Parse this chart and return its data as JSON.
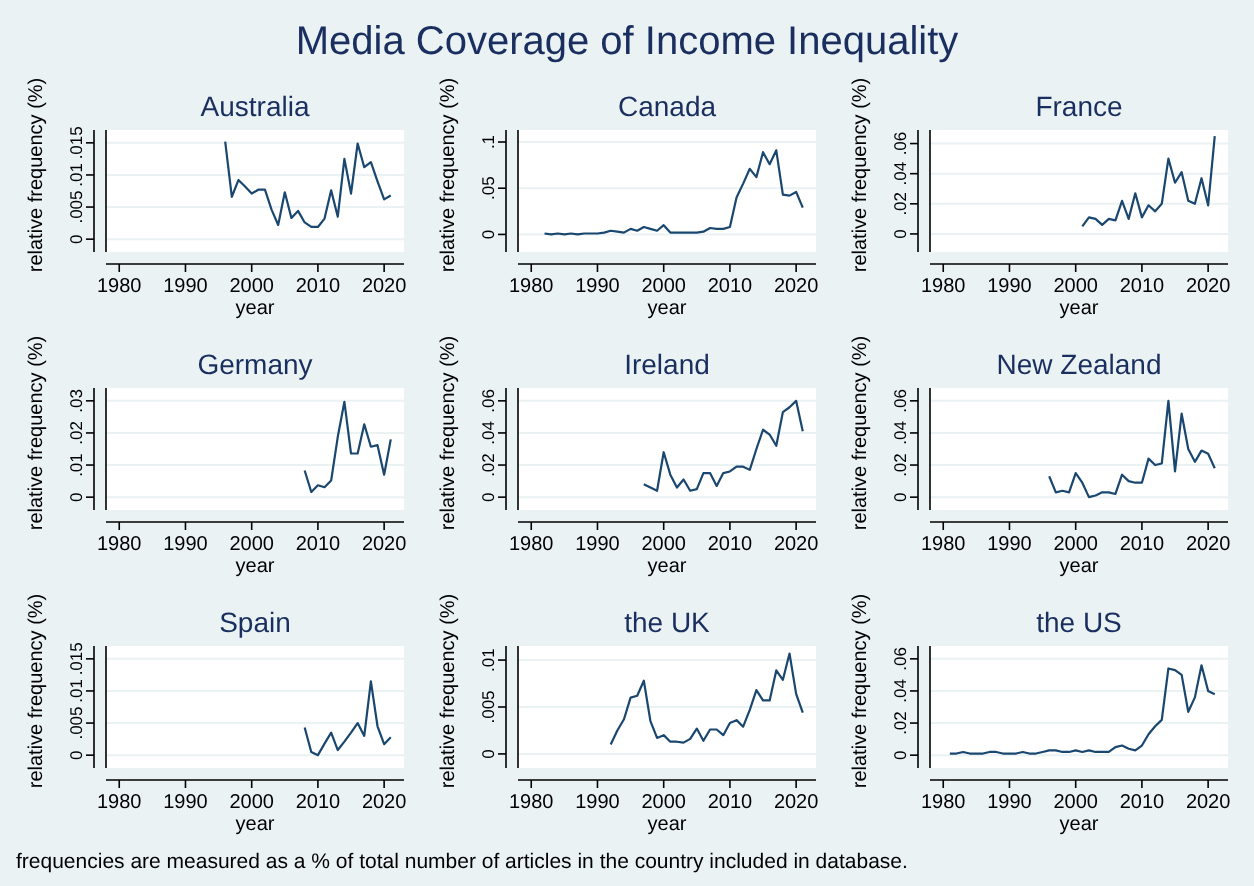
{
  "chart_data": [
    {
      "type": "other",
      "title": "Media Coverage of Income Inequality",
      "annotations": [
        "frequencies are measured as a % of total number of articles in the country included in database."
      ]
    },
    {
      "type": "line",
      "title": "Australia",
      "xlabel": "year",
      "ylabel": "relative frequency (%)",
      "grid": "y",
      "xlim": [
        1978,
        2023
      ],
      "xticks": [
        1980,
        1990,
        2000,
        2010,
        2020
      ],
      "ylim": [
        -0.002,
        0.017
      ],
      "yticks": [
        {
          "value": 0,
          "label": "0"
        },
        {
          "value": 0.005,
          "label": ".005"
        },
        {
          "value": 0.01,
          "label": ".01"
        },
        {
          "value": 0.015,
          "label": ".015"
        }
      ],
      "series": [
        {
          "color": "#1a476f",
          "x": [
            1996,
            1997,
            1998,
            1999,
            2000,
            2001,
            2002,
            2003,
            2004,
            2005,
            2006,
            2007,
            2008,
            2009,
            2010,
            2011,
            2012,
            2013,
            2014,
            2015,
            2016,
            2017,
            2018,
            2019,
            2020,
            2021
          ],
          "values": [
            0.0152,
            0.0066,
            0.0092,
            0.0082,
            0.0071,
            0.0077,
            0.0077,
            0.0046,
            0.0022,
            0.0073,
            0.0033,
            0.0044,
            0.0026,
            0.0019,
            0.0019,
            0.0032,
            0.0076,
            0.0035,
            0.0125,
            0.0071,
            0.0149,
            0.0112,
            0.012,
            0.009,
            0.0062,
            0.0068
          ]
        }
      ]
    },
    {
      "type": "line",
      "title": "Canada",
      "xlabel": "year",
      "ylabel": "relative frequency (%)",
      "grid": "y",
      "xlim": [
        1978,
        2023
      ],
      "xticks": [
        1980,
        1990,
        2000,
        2010,
        2020
      ],
      "ylim": [
        -0.019,
        0.113
      ],
      "yticks": [
        {
          "value": 0,
          "label": "0"
        },
        {
          "value": 0.05,
          "label": ".05"
        },
        {
          "value": 0.1,
          "label": ".1"
        }
      ],
      "series": [
        {
          "color": "#1a476f",
          "x": [
            1982,
            1983,
            1984,
            1985,
            1986,
            1987,
            1988,
            1989,
            1990,
            1991,
            1992,
            1993,
            1994,
            1995,
            1996,
            1997,
            1998,
            1999,
            2000,
            2001,
            2002,
            2003,
            2004,
            2005,
            2006,
            2007,
            2008,
            2009,
            2010,
            2011,
            2012,
            2013,
            2014,
            2015,
            2016,
            2017,
            2018,
            2019,
            2020,
            2021
          ],
          "values": [
            0.001,
            0,
            0.001,
            0,
            0.001,
            0,
            0.001,
            0.001,
            0.001,
            0.002,
            0.004,
            0.003,
            0.002,
            0.006,
            0.004,
            0.008,
            0.006,
            0.004,
            0.01,
            0.002,
            0.002,
            0.002,
            0.002,
            0.002,
            0.003,
            0.007,
            0.006,
            0.006,
            0.008,
            0.04,
            0.055,
            0.071,
            0.062,
            0.089,
            0.076,
            0.091,
            0.043,
            0.042,
            0.046,
            0.029
          ]
        }
      ]
    },
    {
      "type": "line",
      "title": "France",
      "xlabel": "year",
      "ylabel": "relative frequency (%)",
      "grid": "y",
      "xlim": [
        1978,
        2023
      ],
      "xticks": [
        1980,
        1990,
        2000,
        2010,
        2020
      ],
      "ylim": [
        -0.012,
        0.069
      ],
      "yticks": [
        {
          "value": 0,
          "label": "0"
        },
        {
          "value": 0.02,
          "label": ".02"
        },
        {
          "value": 0.04,
          "label": ".04"
        },
        {
          "value": 0.06,
          "label": ".06"
        }
      ],
      "series": [
        {
          "color": "#1a476f",
          "x": [
            2001,
            2002,
            2003,
            2004,
            2005,
            2006,
            2007,
            2008,
            2009,
            2010,
            2011,
            2012,
            2013,
            2014,
            2015,
            2016,
            2017,
            2018,
            2019,
            2020,
            2021
          ],
          "values": [
            0.005,
            0.011,
            0.01,
            0.006,
            0.01,
            0.009,
            0.022,
            0.01,
            0.027,
            0.011,
            0.019,
            0.015,
            0.02,
            0.05,
            0.034,
            0.041,
            0.022,
            0.02,
            0.037,
            0.019,
            0.065
          ]
        }
      ]
    },
    {
      "type": "line",
      "title": "Germany",
      "xlabel": "year",
      "ylabel": "relative frequency (%)",
      "grid": "y",
      "xlim": [
        1978,
        2023
      ],
      "xticks": [
        1980,
        1990,
        2000,
        2010,
        2020
      ],
      "ylim": [
        -0.004,
        0.034
      ],
      "yticks": [
        {
          "value": 0,
          "label": "0"
        },
        {
          "value": 0.01,
          "label": ".01"
        },
        {
          "value": 0.02,
          "label": ".02"
        },
        {
          "value": 0.03,
          "label": ".03"
        }
      ],
      "series": [
        {
          "color": "#1a476f",
          "x": [
            2008,
            2009,
            2010,
            2011,
            2012,
            2013,
            2014,
            2015,
            2016,
            2017,
            2018,
            2019,
            2020,
            2021
          ],
          "values": [
            0.0083,
            0.0016,
            0.0037,
            0.0031,
            0.0052,
            0.0188,
            0.0297,
            0.0136,
            0.0136,
            0.0227,
            0.0157,
            0.0162,
            0.007,
            0.018
          ]
        }
      ]
    },
    {
      "type": "line",
      "title": "Ireland",
      "xlabel": "year",
      "ylabel": "relative frequency (%)",
      "grid": "y",
      "xlim": [
        1978,
        2023
      ],
      "xticks": [
        1980,
        1990,
        2000,
        2010,
        2020
      ],
      "ylim": [
        -0.008,
        0.068
      ],
      "yticks": [
        {
          "value": 0,
          "label": "0"
        },
        {
          "value": 0.02,
          "label": ".02"
        },
        {
          "value": 0.04,
          "label": ".04"
        },
        {
          "value": 0.06,
          "label": ".06"
        }
      ],
      "series": [
        {
          "color": "#1a476f",
          "x": [
            1997,
            1998,
            1999,
            2000,
            2001,
            2002,
            2003,
            2004,
            2005,
            2006,
            2007,
            2008,
            2009,
            2010,
            2011,
            2012,
            2013,
            2014,
            2015,
            2016,
            2017,
            2018,
            2019,
            2020,
            2021
          ],
          "values": [
            0.008,
            0.006,
            0.004,
            0.028,
            0.014,
            0.006,
            0.011,
            0.004,
            0.005,
            0.015,
            0.015,
            0.007,
            0.015,
            0.016,
            0.019,
            0.019,
            0.017,
            0.03,
            0.042,
            0.039,
            0.032,
            0.053,
            0.056,
            0.06,
            0.041
          ]
        }
      ]
    },
    {
      "type": "line",
      "title": "New Zealand",
      "xlabel": "year",
      "ylabel": "relative frequency (%)",
      "grid": "y",
      "xlim": [
        1978,
        2023
      ],
      "xticks": [
        1980,
        1990,
        2000,
        2010,
        2020
      ],
      "ylim": [
        -0.008,
        0.068
      ],
      "yticks": [
        {
          "value": 0,
          "label": "0"
        },
        {
          "value": 0.02,
          "label": ".02"
        },
        {
          "value": 0.04,
          "label": ".04"
        },
        {
          "value": 0.06,
          "label": ".06"
        }
      ],
      "series": [
        {
          "color": "#1a476f",
          "x": [
            1996,
            1997,
            1998,
            1999,
            2000,
            2001,
            2002,
            2003,
            2004,
            2005,
            2006,
            2007,
            2008,
            2009,
            2010,
            2011,
            2012,
            2013,
            2014,
            2015,
            2016,
            2017,
            2018,
            2019,
            2020,
            2021
          ],
          "values": [
            0.013,
            0.003,
            0.004,
            0.003,
            0.015,
            0.009,
            0,
            0.001,
            0.003,
            0.003,
            0.002,
            0.014,
            0.01,
            0.009,
            0.009,
            0.024,
            0.02,
            0.021,
            0.06,
            0.016,
            0.052,
            0.03,
            0.022,
            0.029,
            0.027,
            0.018
          ]
        }
      ]
    },
    {
      "type": "line",
      "title": "Spain",
      "xlabel": "year",
      "ylabel": "relative frequency (%)",
      "grid": "y",
      "xlim": [
        1978,
        2023
      ],
      "xticks": [
        1980,
        1990,
        2000,
        2010,
        2020
      ],
      "ylim": [
        -0.002,
        0.017
      ],
      "yticks": [
        {
          "value": 0,
          "label": "0"
        },
        {
          "value": 0.005,
          "label": ".005"
        },
        {
          "value": 0.01,
          "label": ".01"
        },
        {
          "value": 0.015,
          "label": ".015"
        }
      ],
      "series": [
        {
          "color": "#1a476f",
          "x": [
            2008,
            2009,
            2010,
            2011,
            2012,
            2013,
            2014,
            2015,
            2016,
            2017,
            2018,
            2019,
            2020,
            2021
          ],
          "values": [
            0.0043,
            0.0005,
            0,
            0.0018,
            0.0035,
            0.0008,
            0.0021,
            0.0035,
            0.005,
            0.003,
            0.0115,
            0.0045,
            0.0017,
            0.0028
          ]
        }
      ]
    },
    {
      "type": "line",
      "title": "the UK",
      "xlabel": "year",
      "ylabel": "relative frequency (%)",
      "grid": "y",
      "xlim": [
        1978,
        2023
      ],
      "xticks": [
        1980,
        1990,
        2000,
        2010,
        2020
      ],
      "ylim": [
        -0.0015,
        0.0115
      ],
      "yticks": [
        {
          "value": 0,
          "label": "0"
        },
        {
          "value": 0.005,
          "label": ".005"
        },
        {
          "value": 0.01,
          "label": ".01"
        }
      ],
      "series": [
        {
          "color": "#1a476f",
          "x": [
            1992,
            1993,
            1994,
            1995,
            1996,
            1997,
            1998,
            1999,
            2000,
            2001,
            2002,
            2003,
            2004,
            2005,
            2006,
            2007,
            2008,
            2009,
            2010,
            2011,
            2012,
            2013,
            2014,
            2015,
            2016,
            2017,
            2018,
            2019,
            2020,
            2021
          ],
          "values": [
            0.001,
            0.0025,
            0.0037,
            0.006,
            0.0062,
            0.0078,
            0.0035,
            0.0017,
            0.002,
            0.0013,
            0.0013,
            0.0012,
            0.0016,
            0.0027,
            0.0014,
            0.0026,
            0.0026,
            0.002,
            0.0033,
            0.0036,
            0.0029,
            0.0047,
            0.0068,
            0.0057,
            0.0057,
            0.0089,
            0.0079,
            0.0107,
            0.0064,
            0.0044
          ]
        }
      ]
    },
    {
      "type": "line",
      "title": "the US",
      "xlabel": "year",
      "ylabel": "relative frequency (%)",
      "grid": "y",
      "xlim": [
        1978,
        2023
      ],
      "xticks": [
        1980,
        1990,
        2000,
        2010,
        2020
      ],
      "ylim": [
        -0.008,
        0.068
      ],
      "yticks": [
        {
          "value": 0,
          "label": "0"
        },
        {
          "value": 0.02,
          "label": ".02"
        },
        {
          "value": 0.04,
          "label": ".04"
        },
        {
          "value": 0.06,
          "label": ".06"
        }
      ],
      "series": [
        {
          "color": "#1a476f",
          "x": [
            1981,
            1982,
            1983,
            1984,
            1985,
            1986,
            1987,
            1988,
            1989,
            1990,
            1991,
            1992,
            1993,
            1994,
            1995,
            1996,
            1997,
            1998,
            1999,
            2000,
            2001,
            2002,
            2003,
            2004,
            2005,
            2006,
            2007,
            2008,
            2009,
            2010,
            2011,
            2012,
            2013,
            2014,
            2015,
            2016,
            2017,
            2018,
            2019,
            2020,
            2021
          ],
          "values": [
            0.001,
            0.001,
            0.002,
            0.001,
            0.001,
            0.001,
            0.002,
            0.002,
            0.001,
            0.001,
            0.001,
            0.002,
            0.001,
            0.001,
            0.002,
            0.003,
            0.003,
            0.002,
            0.002,
            0.003,
            0.002,
            0.003,
            0.002,
            0.002,
            0.002,
            0.005,
            0.006,
            0.004,
            0.003,
            0.006,
            0.013,
            0.018,
            0.022,
            0.054,
            0.053,
            0.05,
            0.027,
            0.036,
            0.056,
            0.04,
            0.038
          ]
        }
      ]
    }
  ]
}
